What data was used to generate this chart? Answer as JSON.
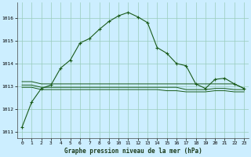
{
  "title": "Graphe pression niveau de la mer (hPa)",
  "background_color": "#cceeff",
  "grid_color": "#99ccbb",
  "line_color": "#1a5c1a",
  "marker_color": "#1a5c1a",
  "xlim": [
    -0.5,
    23.5
  ],
  "ylim": [
    1010.7,
    1016.7
  ],
  "yticks": [
    1011,
    1012,
    1013,
    1014,
    1015,
    1016
  ],
  "xticks": [
    0,
    1,
    2,
    3,
    4,
    5,
    6,
    7,
    8,
    9,
    10,
    11,
    12,
    13,
    14,
    15,
    16,
    17,
    18,
    19,
    20,
    21,
    22,
    23
  ],
  "series1": [
    1011.2,
    1012.3,
    1012.9,
    1013.05,
    1013.8,
    1014.15,
    1014.9,
    1015.1,
    1015.5,
    1015.85,
    1016.1,
    1016.25,
    1016.05,
    1015.8,
    1014.7,
    1014.45,
    1014.0,
    1013.9,
    1013.1,
    1012.9,
    1013.3,
    1013.35,
    1013.1,
    1012.9
  ],
  "series2": [
    1013.2,
    1013.2,
    1013.1,
    1013.1,
    1013.1,
    1013.1,
    1013.1,
    1013.1,
    1013.1,
    1013.1,
    1013.1,
    1013.1,
    1013.1,
    1013.1,
    1013.1,
    1013.1,
    1013.1,
    1013.1,
    1013.1,
    1013.1,
    1013.1,
    1013.1,
    1013.1,
    1012.9
  ],
  "series3": [
    1013.05,
    1013.05,
    1012.95,
    1012.95,
    1012.95,
    1012.95,
    1012.95,
    1012.95,
    1012.95,
    1012.95,
    1012.95,
    1012.95,
    1012.95,
    1012.95,
    1012.95,
    1012.95,
    1012.95,
    1012.85,
    1012.85,
    1012.85,
    1012.9,
    1012.9,
    1012.85,
    1012.85
  ],
  "series4": [
    1012.95,
    1012.95,
    1012.85,
    1012.85,
    1012.85,
    1012.85,
    1012.85,
    1012.85,
    1012.85,
    1012.85,
    1012.85,
    1012.85,
    1012.85,
    1012.85,
    1012.85,
    1012.8,
    1012.8,
    1012.75,
    1012.75,
    1012.75,
    1012.8,
    1012.8,
    1012.75,
    1012.75
  ]
}
